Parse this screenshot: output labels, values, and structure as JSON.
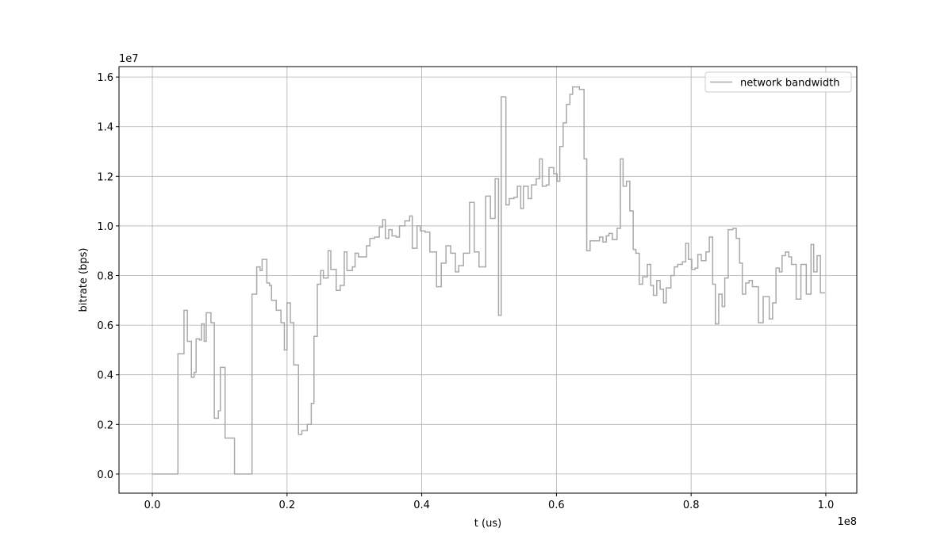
{
  "chart_data": {
    "type": "step",
    "xlabel": "t (us)",
    "ylabel": "bitrate (bps)",
    "x_offset_label": "1e8",
    "y_offset_label": "1e7",
    "xlim": [
      -4950000,
      104600000
    ],
    "ylim": [
      -770000,
      16420000
    ],
    "xticks": [
      {
        "value": 0,
        "label": "0.0"
      },
      {
        "value": 20000000,
        "label": "0.2"
      },
      {
        "value": 40000000,
        "label": "0.4"
      },
      {
        "value": 60000000,
        "label": "0.6"
      },
      {
        "value": 80000000,
        "label": "0.8"
      },
      {
        "value": 100000000,
        "label": "1.0"
      }
    ],
    "yticks": [
      {
        "value": 0,
        "label": "0.0"
      },
      {
        "value": 2000000,
        "label": "0.2"
      },
      {
        "value": 4000000,
        "label": "0.4"
      },
      {
        "value": 6000000,
        "label": "0.6"
      },
      {
        "value": 8000000,
        "label": "0.8"
      },
      {
        "value": 10000000,
        "label": "1.0"
      },
      {
        "value": 12000000,
        "label": "1.2"
      },
      {
        "value": 14000000,
        "label": "1.4"
      },
      {
        "value": 16000000,
        "label": "1.6"
      }
    ],
    "grid": true,
    "legend": "upper right",
    "x": [
      0,
      3800000,
      4700000,
      5200000,
      5800000,
      6200000,
      6500000,
      7000000,
      7300000,
      7700000,
      8000000,
      8700000,
      9200000,
      9800000,
      10100000,
      10800000,
      12200000,
      14800000,
      15500000,
      16000000,
      16300000,
      17000000,
      17400000,
      17700000,
      18400000,
      19100000,
      19600000,
      20000000,
      20500000,
      21000000,
      21700000,
      22200000,
      23000000,
      23600000,
      24000000,
      24500000,
      25000000,
      25400000,
      26100000,
      26500000,
      27300000,
      27900000,
      28500000,
      28900000,
      29700000,
      30100000,
      30600000,
      31800000,
      32300000,
      33000000,
      33700000,
      34200000,
      34600000,
      35100000,
      35600000,
      36200000,
      36700000,
      37500000,
      38200000,
      38600000,
      39300000,
      39800000,
      40500000,
      41200000,
      42200000,
      42900000,
      43600000,
      44300000,
      45000000,
      45500000,
      46200000,
      47100000,
      47800000,
      48500000,
      49500000,
      50200000,
      50900000,
      51400000,
      51800000,
      52500000,
      53000000,
      53700000,
      54200000,
      54700000,
      55100000,
      55800000,
      56300000,
      57000000,
      57500000,
      57900000,
      58500000,
      58900000,
      59600000,
      60100000,
      60500000,
      61000000,
      61500000,
      62000000,
      62400000,
      63400000,
      64100000,
      64500000,
      65000000,
      66400000,
      66900000,
      67400000,
      67800000,
      68300000,
      69000000,
      69500000,
      69900000,
      70400000,
      70900000,
      71400000,
      71800000,
      72300000,
      72800000,
      73500000,
      74000000,
      74400000,
      74900000,
      75400000,
      75900000,
      76300000,
      77000000,
      77500000,
      78000000,
      78700000,
      79200000,
      79600000,
      80100000,
      80600000,
      81000000,
      81500000,
      82200000,
      82700000,
      83200000,
      83600000,
      84100000,
      84600000,
      85000000,
      85500000,
      86200000,
      86700000,
      87200000,
      87600000,
      88100000,
      88600000,
      89100000,
      90000000,
      90700000,
      91600000,
      92100000,
      92600000,
      93100000,
      93500000,
      94000000,
      94500000,
      94900000,
      95600000,
      96300000,
      97100000,
      97800000,
      98200000,
      98700000,
      99200000,
      99900000
    ],
    "series": [
      {
        "name": "network bandwidth",
        "color": "#a9a9a9",
        "values": [
          0,
          4850000,
          6600000,
          5350000,
          3900000,
          4100000,
          5450000,
          5400000,
          6050000,
          5350000,
          6500000,
          6100000,
          2250000,
          2550000,
          4300000,
          1450000,
          0,
          7250000,
          8350000,
          8200000,
          8650000,
          7700000,
          7600000,
          7000000,
          6600000,
          6100000,
          5000000,
          6900000,
          6100000,
          4400000,
          1600000,
          1750000,
          2000000,
          2850000,
          5550000,
          7650000,
          8200000,
          7900000,
          9000000,
          8250000,
          7400000,
          7600000,
          8950000,
          8200000,
          8350000,
          8900000,
          8750000,
          9200000,
          9500000,
          9550000,
          9950000,
          10250000,
          9500000,
          9850000,
          9600000,
          9550000,
          10000000,
          10200000,
          10400000,
          9100000,
          10000000,
          9800000,
          9750000,
          8950000,
          7550000,
          8500000,
          9200000,
          8900000,
          8150000,
          8400000,
          8900000,
          10950000,
          8950000,
          8350000,
          11200000,
          10300000,
          11900000,
          6400000,
          15200000,
          10850000,
          11100000,
          11150000,
          11600000,
          10700000,
          11600000,
          11100000,
          11650000,
          11900000,
          12700000,
          11600000,
          11650000,
          12350000,
          12100000,
          11800000,
          13200000,
          14150000,
          14900000,
          15300000,
          15600000,
          15500000,
          12700000,
          9000000,
          9400000,
          9550000,
          9350000,
          9600000,
          9700000,
          9450000,
          9900000,
          12700000,
          11600000,
          11800000,
          10600000,
          9050000,
          8900000,
          7650000,
          7950000,
          8450000,
          7600000,
          7200000,
          7800000,
          7450000,
          6900000,
          7500000,
          8000000,
          8350000,
          8450000,
          8550000,
          9300000,
          8650000,
          8250000,
          8300000,
          8850000,
          8600000,
          8950000,
          9550000,
          7650000,
          6050000,
          7250000,
          6750000,
          7900000,
          9850000,
          9900000,
          9500000,
          8500000,
          7250000,
          7700000,
          7800000,
          7550000,
          6100000,
          7150000,
          6250000,
          6900000,
          8300000,
          8150000,
          8800000,
          8950000,
          8750000,
          8450000,
          7050000,
          8450000,
          7250000,
          9250000,
          8150000,
          8800000,
          7300000,
          7300000
        ]
      }
    ]
  }
}
